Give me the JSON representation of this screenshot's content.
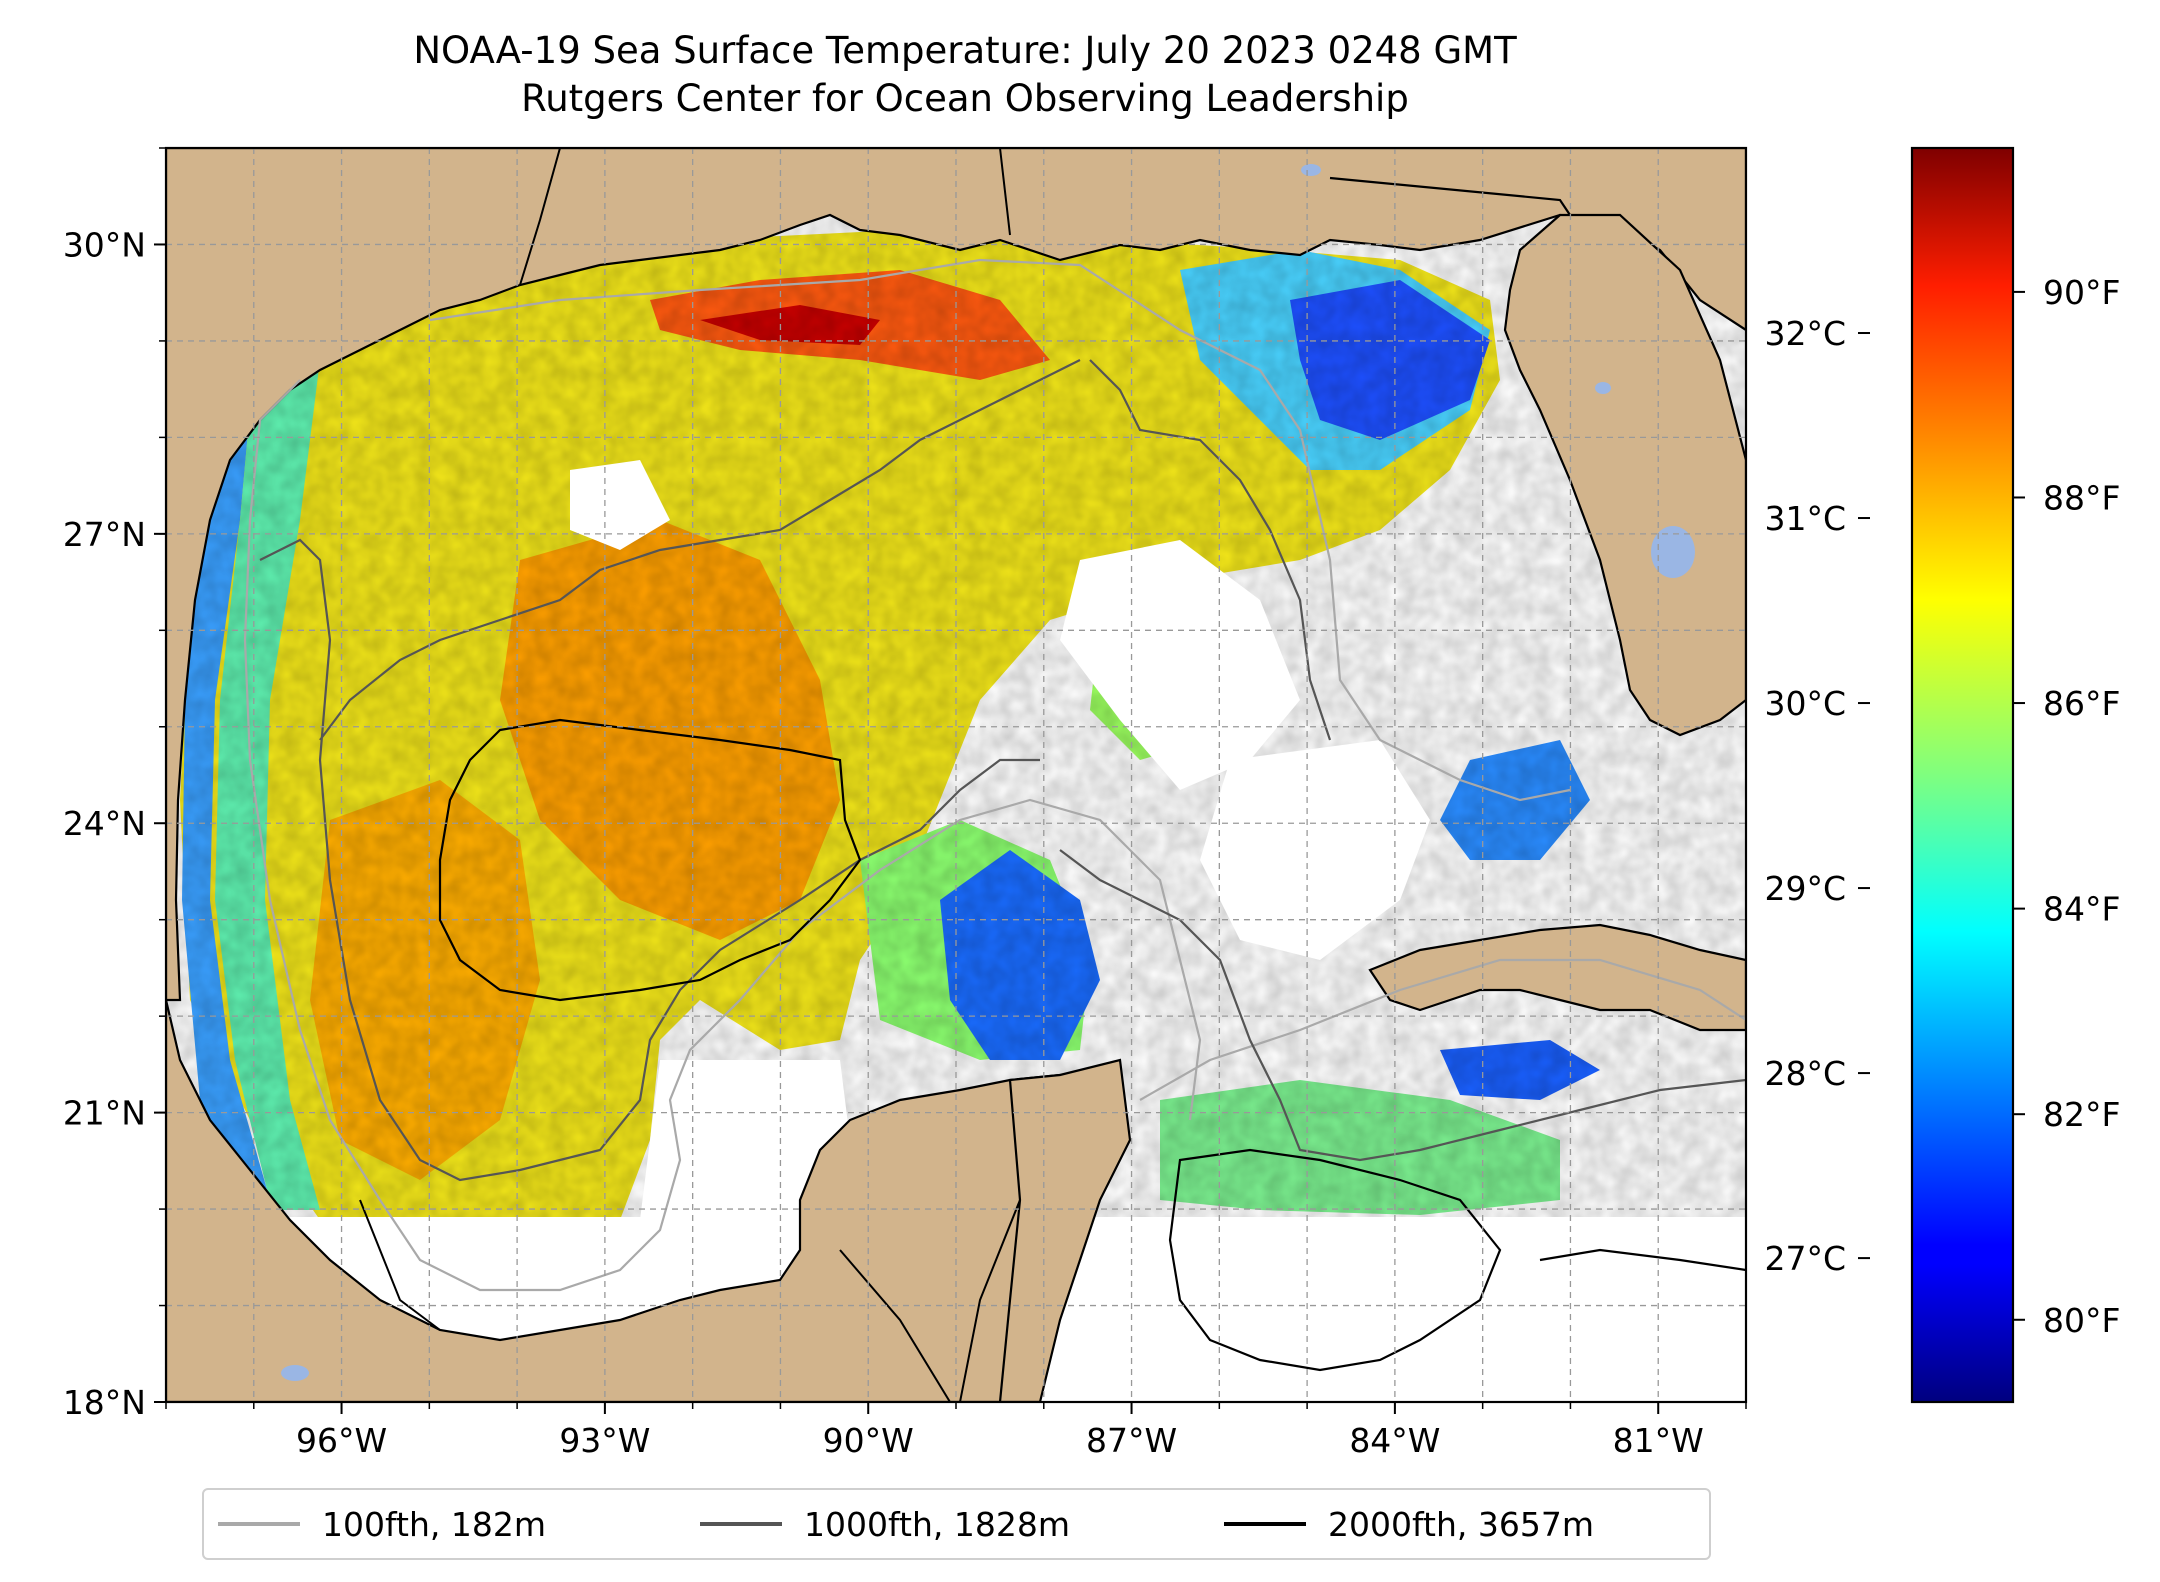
{
  "title": {
    "line1": "NOAA-19 Sea Surface Temperature: July 20 2023 0248 GMT",
    "line2": "Rutgers Center for Ocean Observing Leadership"
  },
  "map": {
    "lon_range": [
      -98.0,
      -80.0
    ],
    "lat_range": [
      18.0,
      31.0
    ],
    "land_color": "#D2B48C",
    "water_feature_color": "#9AB6E4",
    "no_data_color": "#ffffff",
    "gridlines": "dashed",
    "lon_ticks": [
      "96°W",
      "93°W",
      "90°W",
      "87°W",
      "84°W",
      "81°W"
    ],
    "lat_ticks": [
      "18°N",
      "21°N",
      "24°N",
      "27°N",
      "30°N"
    ],
    "layer": "Sea Surface Temperature",
    "colormap": "jet"
  },
  "colorbar": {
    "celsius_ticks": [
      "27°C",
      "28°C",
      "29°C",
      "30°C",
      "31°C",
      "32°C"
    ],
    "fahrenheit_ticks": [
      "80°F",
      "82°F",
      "84°F",
      "86°F",
      "88°F",
      "90°F"
    ],
    "fahrenheit_range": [
      79.2,
      91.4
    ]
  },
  "legend": {
    "items": [
      {
        "label": "100fth, 182m",
        "color": "#a9a9a9"
      },
      {
        "label": "1000fth, 1828m",
        "color": "#555555"
      },
      {
        "label": "2000fth, 3657m",
        "color": "#000000"
      }
    ]
  }
}
